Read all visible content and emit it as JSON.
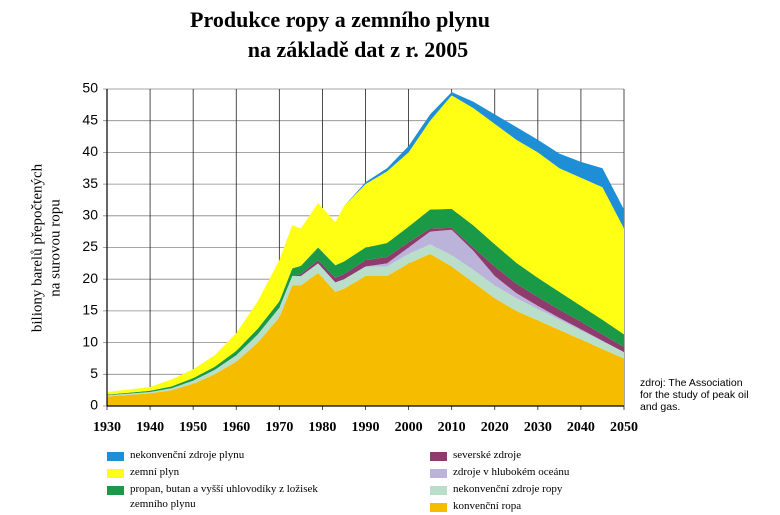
{
  "chart_data": {
    "type": "stacked_area",
    "title": [
      "Produkce ropy a zemního plynu",
      "na základě dat z r. 2005"
    ],
    "ylabel": [
      "biliony barelů přepočtených",
      "na surovou ropu"
    ],
    "source": [
      "zdroj: The Association",
      "for the study of peak oil",
      "and gas."
    ],
    "x": [
      1930,
      1940,
      1945,
      1950,
      1955,
      1960,
      1965,
      1970,
      1973,
      1975,
      1979,
      1983,
      1985,
      1990,
      1995,
      2000,
      2005,
      2010,
      2015,
      2020,
      2025,
      2030,
      2035,
      2040,
      2045,
      2050
    ],
    "xlim": [
      1930,
      2050
    ],
    "xticks": [
      1930,
      1940,
      1950,
      1960,
      1970,
      1980,
      1990,
      2000,
      2010,
      2020,
      2030,
      2040,
      2050
    ],
    "ylim": [
      0,
      50
    ],
    "yticks": [
      0,
      5,
      10,
      15,
      20,
      25,
      30,
      35,
      40,
      45,
      50
    ],
    "grid": true,
    "series": [
      {
        "name": "konvenční ropa",
        "color": "#f6bd00",
        "values": [
          1.5,
          2,
          2.5,
          3.5,
          5,
          7,
          10,
          14,
          19,
          19,
          21,
          18,
          18.5,
          20.5,
          20.5,
          22.5,
          24,
          22,
          19.5,
          17,
          15,
          13.5,
          12,
          10.5,
          9,
          7.5
        ]
      },
      {
        "name": "nekonvenční zdroje ropy",
        "color": "#b9dfca",
        "values": [
          0.2,
          0.2,
          0.3,
          0.5,
          0.7,
          1,
          1.3,
          1.5,
          1.5,
          1.5,
          1.5,
          1.5,
          1.5,
          1.5,
          1.5,
          1.5,
          1.5,
          1.8,
          2,
          2,
          2,
          1.8,
          1.6,
          1.4,
          1.2,
          1
        ]
      },
      {
        "name": "zdroje v hlubokém oceánu",
        "color": "#bcb3da",
        "values": [
          0,
          0,
          0,
          0,
          0,
          0,
          0,
          0,
          0,
          0,
          0,
          0,
          0,
          0,
          0.5,
          1,
          2,
          4,
          3,
          1.5,
          0.8,
          0.5,
          0.3,
          0.2,
          0.1,
          0
        ]
      },
      {
        "name": "severské zdroje",
        "color": "#8e3b6e",
        "values": [
          0,
          0,
          0,
          0,
          0,
          0,
          0,
          0,
          0,
          0.3,
          0.5,
          0.7,
          0.8,
          1,
          1,
          0.8,
          0.5,
          0.3,
          0.5,
          1.5,
          1.5,
          1.4,
          1.3,
          1.2,
          1,
          0.8
        ]
      },
      {
        "name": "propan, butan a vyšší uhlovodíky z ložisek zemního plynu",
        "color": "#1a9946",
        "values": [
          0.1,
          0.2,
          0.3,
          0.4,
          0.5,
          0.7,
          0.9,
          1,
          1.2,
          1.3,
          2,
          2,
          2,
          2,
          2.2,
          2.5,
          3,
          3,
          3.5,
          3.5,
          3.3,
          3,
          2.8,
          2.5,
          2.3,
          2
        ]
      },
      {
        "name": "zemní plyn",
        "color": "#ffff14",
        "values": [
          0.4,
          0.6,
          1.1,
          1.4,
          1.8,
          2.8,
          4.3,
          6.5,
          6.8,
          5.9,
          7,
          6.8,
          8.7,
          10,
          11.3,
          11.7,
          14,
          17.9,
          18.5,
          19,
          19.4,
          19.8,
          19.5,
          20.2,
          20.9,
          16.7
        ]
      },
      {
        "name": "nekonvenční zdroje plynu",
        "color": "#1e8fd6",
        "values": [
          0,
          0,
          0,
          0,
          0,
          0,
          0,
          0,
          0,
          0,
          0,
          0,
          0,
          0.3,
          0.5,
          1,
          1,
          0.5,
          1,
          1.5,
          2,
          2,
          2.3,
          2.5,
          3,
          3
        ]
      }
    ]
  }
}
